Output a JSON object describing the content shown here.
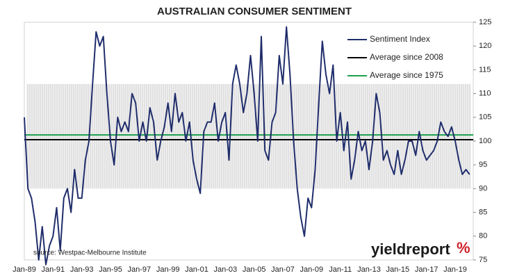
{
  "chart_data": {
    "type": "line",
    "title": "AUSTRALIAN CONSUMER SENTIMENT",
    "source": "source: Westpac-Melbourne Institute",
    "logo": {
      "text": "yieldreport",
      "symbol": "%"
    },
    "categories": [
      "Jan-89",
      null,
      null,
      null,
      null,
      null,
      null,
      null,
      "Jan-91",
      null,
      null,
      null,
      null,
      null,
      null,
      null,
      "Jan-93",
      null,
      null,
      null,
      null,
      null,
      null,
      null,
      "Jan-95",
      null,
      null,
      null,
      null,
      null,
      null,
      null,
      "Jan-97",
      null,
      null,
      null,
      null,
      null,
      null,
      null,
      "Jan-99",
      null,
      null,
      null,
      null,
      null,
      null,
      null,
      "Jan-01",
      null,
      null,
      null,
      null,
      null,
      null,
      null,
      "Jan-03",
      null,
      null,
      null,
      null,
      null,
      null,
      null,
      "Jan-05",
      null,
      null,
      null,
      null,
      null,
      null,
      null,
      "Jan-07",
      null,
      null,
      null,
      null,
      null,
      null,
      null,
      "Jan-09",
      null,
      null,
      null,
      null,
      null,
      null,
      null,
      "Jan-11",
      null,
      null,
      null,
      null,
      null,
      null,
      null,
      "Jan-13",
      null,
      null,
      null,
      null,
      null,
      null,
      null,
      "Jan-15",
      null,
      null,
      null,
      null,
      null,
      null,
      null,
      "Jan-17",
      null,
      null,
      null,
      null,
      null,
      null,
      null,
      "Jan-19",
      null,
      null,
      null,
      null
    ],
    "series": [
      {
        "name": "Sentiment Index",
        "color": "#1f2d6b",
        "values": [
          105,
          90,
          88,
          83,
          75,
          82,
          74,
          78,
          80,
          86,
          77,
          88,
          90,
          85,
          94,
          88,
          88,
          96,
          100,
          112,
          123,
          120,
          122,
          110,
          100,
          95,
          105,
          102,
          104,
          102,
          110,
          108,
          100,
          104,
          100,
          107,
          104,
          96,
          100,
          103,
          108,
          102,
          110,
          104,
          106,
          100,
          104,
          96,
          92,
          89,
          102,
          104,
          104,
          108,
          100,
          104,
          106,
          96,
          112,
          116,
          112,
          106,
          110,
          118,
          110,
          100,
          122,
          98,
          96,
          104,
          106,
          118,
          112,
          124,
          114,
          100,
          90,
          84,
          80,
          88,
          86,
          94,
          108,
          121,
          114,
          110,
          116,
          100,
          106,
          98,
          104,
          92,
          96,
          102,
          98,
          100,
          94,
          100,
          110,
          106,
          96,
          98,
          95,
          93,
          98,
          93,
          96,
          100,
          100,
          97,
          102,
          98,
          96,
          97,
          98,
          100,
          104,
          102,
          101,
          103,
          100,
          96,
          93,
          94,
          93
        ]
      }
    ],
    "reference_lines": [
      {
        "name": "Average since 2008",
        "color": "#000000",
        "value": 100.3
      },
      {
        "name": "Average since 1975",
        "color": "#1aa04a",
        "value": 101.3
      }
    ],
    "shaded_range": [
      90,
      112
    ],
    "ylim": [
      75,
      125
    ],
    "yticks": [
      75,
      80,
      85,
      90,
      95,
      100,
      105,
      110,
      115,
      120,
      125
    ]
  }
}
